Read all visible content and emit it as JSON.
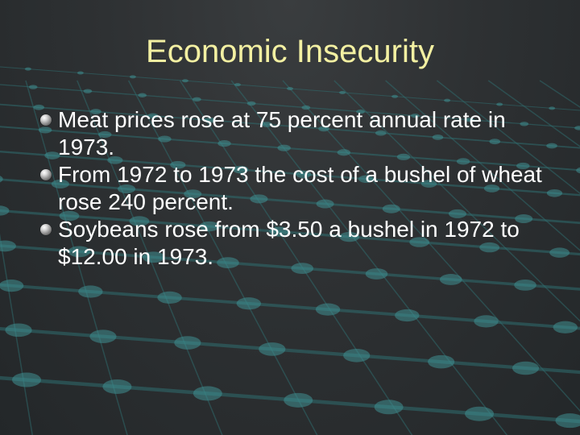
{
  "slide": {
    "title": "Economic Insecurity",
    "bullets": [
      {
        "icon": "sphere-bullet-icon",
        "text": "Meat prices rose at 75 percent annual rate in 1973."
      },
      {
        "icon": "sphere-bullet-icon",
        "text": "From 1972 to 1973 the cost of a bushel of wheat rose 240 percent."
      },
      {
        "icon": "sphere-bullet-icon",
        "text": "Soybeans rose from $3.50 a bushel in 1972 to $12.00 in 1973."
      }
    ]
  },
  "colors": {
    "background": "#2e3133",
    "title": "#f3f0a2",
    "body_text": "#ffffff",
    "grid_lines": "#2f6e70",
    "grid_nodes": "#3f8f92"
  }
}
